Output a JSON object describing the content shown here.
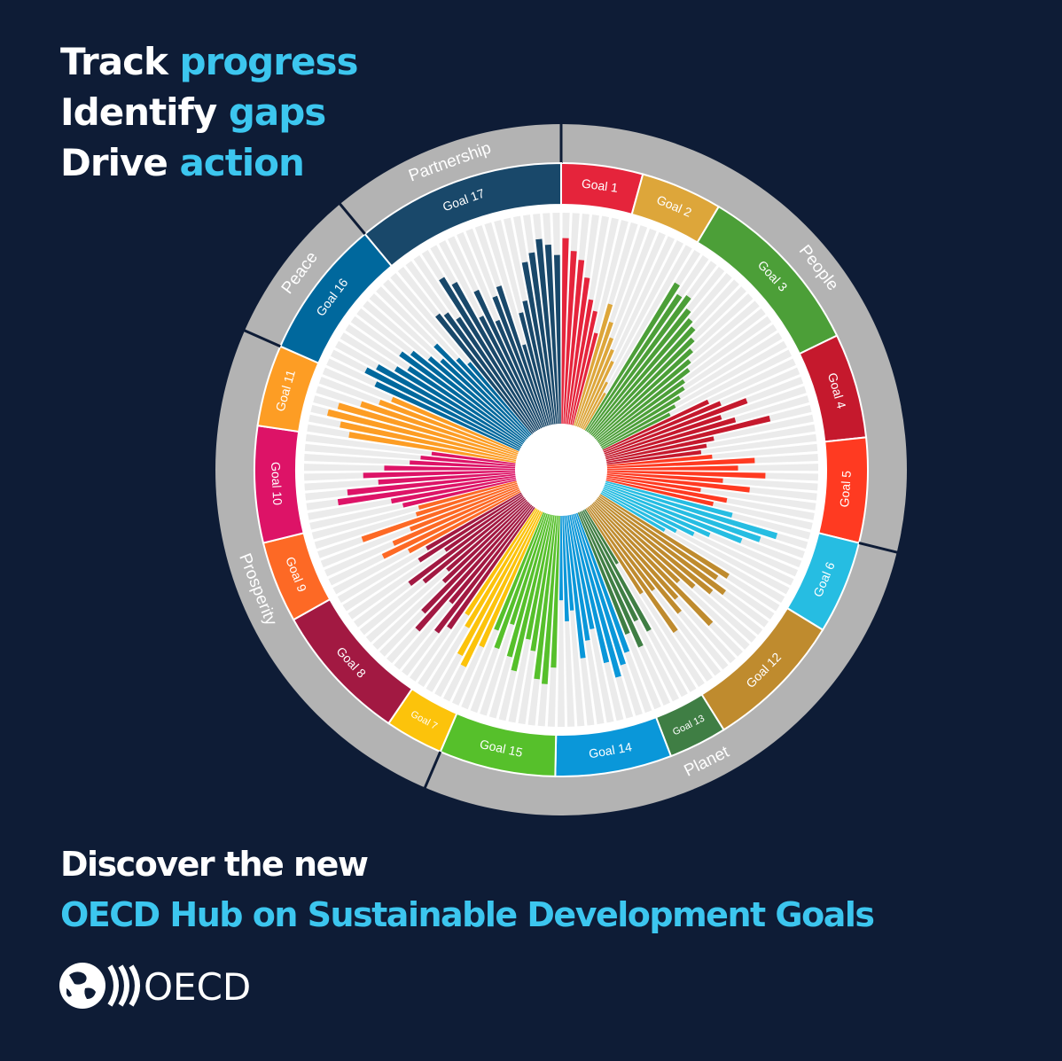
{
  "headline": [
    {
      "text": "Track",
      "highlight": "progress"
    },
    {
      "text": "Identify",
      "highlight": "gaps"
    },
    {
      "text": "Drive",
      "highlight": "action"
    }
  ],
  "chart_data": {
    "type": "radial-bar",
    "ylim": [
      0,
      100
    ],
    "pillars": [
      {
        "name": "People",
        "goals": [
          {
            "label": "Goal 1",
            "color": "#e5243b",
            "values": [
              88,
              82,
              78,
              70,
              60,
              55,
              45
            ]
          },
          {
            "label": "Goal 2",
            "color": "#dda63a",
            "values": [
              60,
              52,
              45,
              40,
              35,
              25,
              20
            ]
          },
          {
            "label": "Goal 3",
            "color": "#4c9f38",
            "values": [
              82,
              78,
              80,
              75,
              72,
              70,
              66,
              62,
              58,
              55,
              50,
              48,
              44,
              40,
              36
            ]
          },
          {
            "label": "Goal 4",
            "color": "#c5192d",
            "values": [
              55,
              60,
              72,
              58,
              64,
              80,
              52,
              48,
              45
            ]
          },
          {
            "label": "Goal 5",
            "color": "#ff3a21",
            "values": [
              50,
              70,
              62,
              75,
              55,
              68,
              45,
              58,
              52
            ]
          }
        ]
      },
      {
        "name": "Planet",
        "goals": [
          {
            "label": "Goal 6",
            "color": "#26bde2",
            "values": [
              62,
              85,
              78,
              70,
              55,
              48,
              40,
              35
            ]
          },
          {
            "label": "Goal 12",
            "color": "#bf8b2e",
            "values": [
              72,
              68,
              75,
              70,
              62,
              55,
              80,
              60,
              66,
              50,
              72,
              48
            ]
          },
          {
            "label": "Goal 13",
            "color": "#3f7e44",
            "values": [
              30,
              65,
              58,
              70,
              62
            ]
          },
          {
            "label": "Goal 14",
            "color": "#0a97d9",
            "values": [
              70,
              75,
              80,
              72,
              55,
              60,
              68,
              45,
              50,
              40
            ]
          },
          {
            "label": "Goal 15",
            "color": "#56c02b",
            "values": [
              72,
              80,
              78,
              65,
              60,
              76,
              70,
              55,
              68,
              60
            ]
          }
        ]
      },
      {
        "name": "Prosperity",
        "goals": [
          {
            "label": "Goal 7",
            "color": "#fcc30b",
            "values": [
              70,
              82,
              78,
              65,
              60
            ]
          },
          {
            "label": "Goal 8",
            "color": "#a21942",
            "values": [
              70,
              75,
              60,
              80,
              72,
              55,
              50,
              62,
              68,
              45,
              58,
              52
            ]
          },
          {
            "label": "Goal 9",
            "color": "#fd6925",
            "values": [
              60,
              72,
              65,
              55,
              78,
              50,
              48
            ]
          },
          {
            "label": "Goal 10",
            "color": "#dd1367",
            "values": [
              55,
              60,
              85,
              80,
              65,
              72,
              62,
              50,
              45,
              40
            ]
          },
          {
            "label": "Goal 11",
            "color": "#fd9d24",
            "values": [
              80,
              85,
              92,
              88,
              78,
              70,
              65
            ]
          }
        ]
      },
      {
        "name": "Peace",
        "goals": [
          {
            "label": "Goal 16",
            "color": "#00689d",
            "values": [
              75,
              82,
              78,
              70,
              65,
              72,
              68,
              60,
              55,
              62,
              50,
              45
            ]
          }
        ]
      },
      {
        "name": "Partnership",
        "goals": [
          {
            "label": "Goal 17",
            "color": "#19486a",
            "values": [
              72,
              70,
              65,
              85,
              80,
              60,
              72,
              55,
              66,
              70,
              40,
              55,
              60,
              78,
              82,
              88,
              85,
              80
            ]
          }
        ]
      }
    ]
  },
  "footer": {
    "intro": "Discover the new",
    "title": "OECD Hub on Sustainable Development Goals",
    "logo": "OECD"
  }
}
